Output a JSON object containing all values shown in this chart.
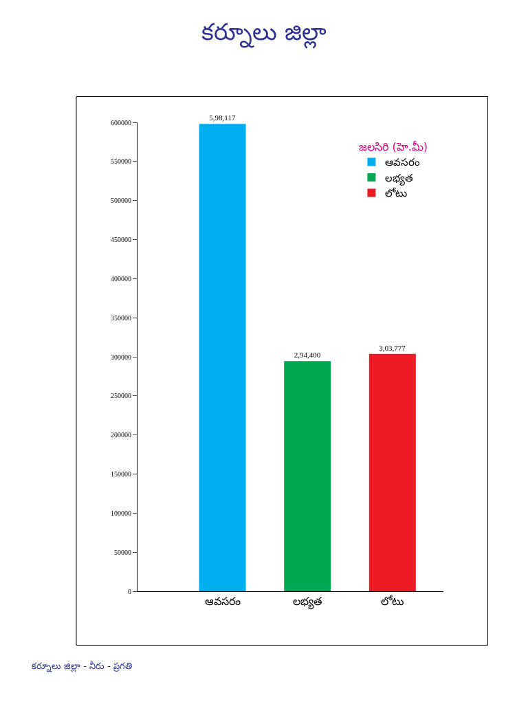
{
  "chart_data": {
    "type": "bar",
    "title": "కర్నూలు జిల్లా",
    "categories": [
      "ఆవసరం",
      "లభ్యత",
      "లోటు"
    ],
    "series": [
      {
        "name": "ఆవసరం",
        "color": "#00aeef",
        "values": [
          598117,
          null,
          null
        ],
        "value_labels": [
          "5,98,117",
          null,
          null
        ]
      },
      {
        "name": "లభ్యత",
        "color": "#00a651",
        "values": [
          null,
          294400,
          null
        ],
        "value_labels": [
          null,
          "2,94,400",
          null
        ]
      },
      {
        "name": "లోటు",
        "color": "#ed1c24",
        "values": [
          null,
          null,
          303777
        ],
        "value_labels": [
          null,
          null,
          "3,03,777"
        ]
      }
    ],
    "legend_title": "జలసిరి (హె.మీ)",
    "legend": "top right",
    "ylim": [
      0,
      600000
    ],
    "yticks": [
      0,
      50000,
      100000,
      150000,
      200000,
      250000,
      300000,
      350000,
      400000,
      450000,
      500000,
      550000,
      600000
    ],
    "annotations": [
      "కర్నూలు జిల్లా - నీరు - ప్రగతి"
    ]
  }
}
